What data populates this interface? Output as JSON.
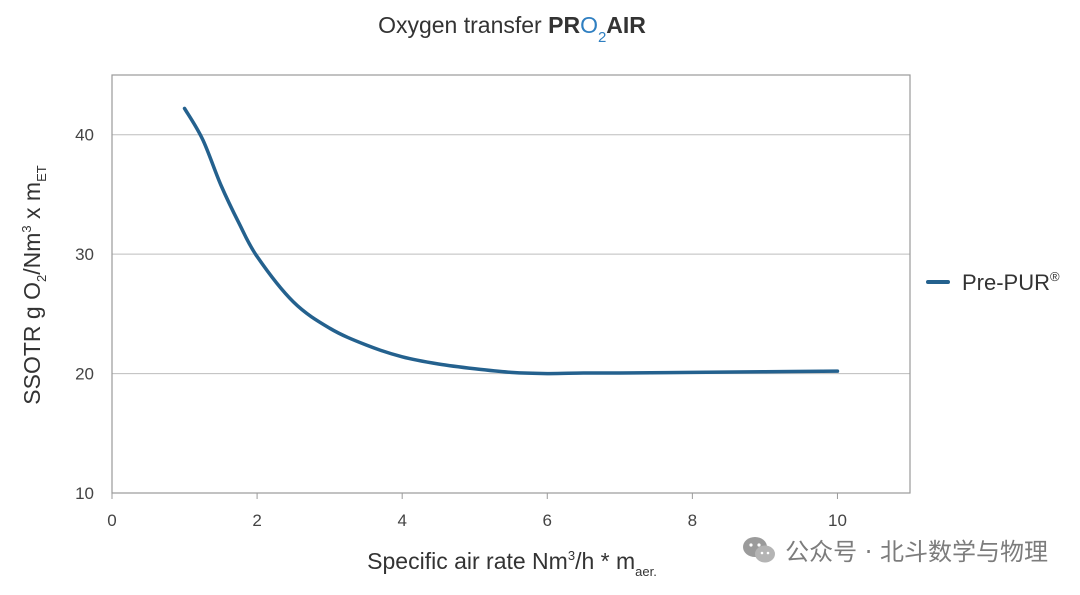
{
  "title": {
    "prefix": "Oxygen transfer ",
    "brand_pr": "PR",
    "brand_o": "O",
    "brand_sub": "2",
    "brand_air": "AIR",
    "brand_color": "#2f7fc1"
  },
  "xaxis": {
    "label_main": "Specific air rate Nm",
    "label_sup": "3",
    "label_mid": "/h * m",
    "label_sub": "aer."
  },
  "yaxis": {
    "label_main": "SSOTR g O",
    "label_sub1": "2",
    "label_mid": "/Nm",
    "label_sup": "3",
    "label_x": " x m",
    "label_sub2": "ET"
  },
  "legend": {
    "name": "Pre-PUR",
    "mark": "®",
    "position": "right",
    "color": "#24618e"
  },
  "watermark": {
    "text": "公众号 · 北斗数学与物理",
    "icon": "wechat-icon"
  },
  "chart_data": {
    "type": "line",
    "xlim": [
      0,
      11
    ],
    "ylim": [
      10,
      45
    ],
    "xticks": [
      0,
      2,
      4,
      6,
      8,
      10
    ],
    "yticks": [
      10,
      20,
      30,
      40
    ],
    "grid": "horizontal",
    "series": [
      {
        "name": "Pre-PUR®",
        "color": "#24618e",
        "points": [
          [
            1.0,
            42.2
          ],
          [
            1.25,
            39.6
          ],
          [
            1.5,
            35.8
          ],
          [
            1.75,
            32.6
          ],
          [
            2.0,
            29.8
          ],
          [
            2.5,
            26.0
          ],
          [
            3.0,
            23.8
          ],
          [
            3.5,
            22.4
          ],
          [
            4.0,
            21.4
          ],
          [
            4.5,
            20.8
          ],
          [
            5.0,
            20.4
          ],
          [
            5.5,
            20.1
          ],
          [
            6.0,
            20.0
          ],
          [
            6.5,
            20.05
          ],
          [
            7.0,
            20.05
          ],
          [
            8.0,
            20.1
          ],
          [
            9.0,
            20.15
          ],
          [
            10.0,
            20.2
          ]
        ]
      }
    ]
  }
}
